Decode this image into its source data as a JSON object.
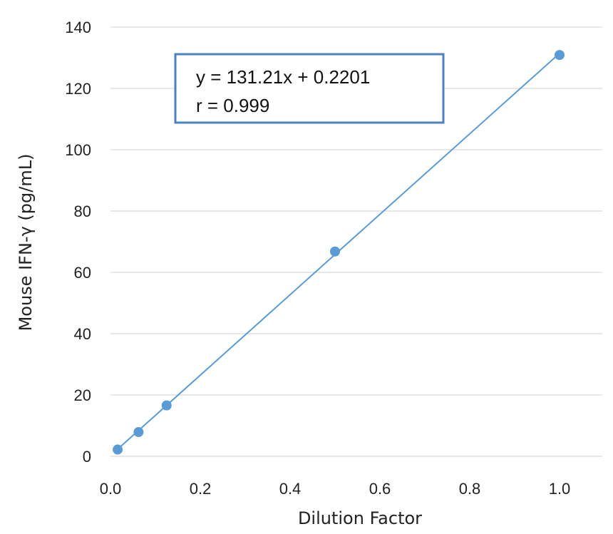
{
  "chart_data": {
    "type": "scatter",
    "title": "",
    "xlabel": "Dilution Factor",
    "ylabel": "Mouse IFN-γ (pg/mL)",
    "xlim": [
      0,
      1.0
    ],
    "ylim": [
      0,
      140
    ],
    "x_ticks": [
      "0.0",
      "0.2",
      "0.4",
      "0.6",
      "0.8",
      "1.0"
    ],
    "y_ticks": [
      "0",
      "20",
      "40",
      "60",
      "80",
      "100",
      "120",
      "140"
    ],
    "grid": "horizontal",
    "series": [
      {
        "x": [
          0.016,
          0.0625,
          0.125,
          0.5,
          1.0
        ],
        "y": [
          2.2,
          7.9,
          16.6,
          66.8,
          130.9
        ],
        "color": "#5b9bd5"
      }
    ],
    "trendline": {
      "slope": 131.21,
      "intercept": 0.2201,
      "color": "#5b9bd5"
    },
    "annotation": {
      "line1": "y = 131.21x + 0.2201",
      "line2": "r = 0.999",
      "border_color": "#4f81bd"
    }
  }
}
